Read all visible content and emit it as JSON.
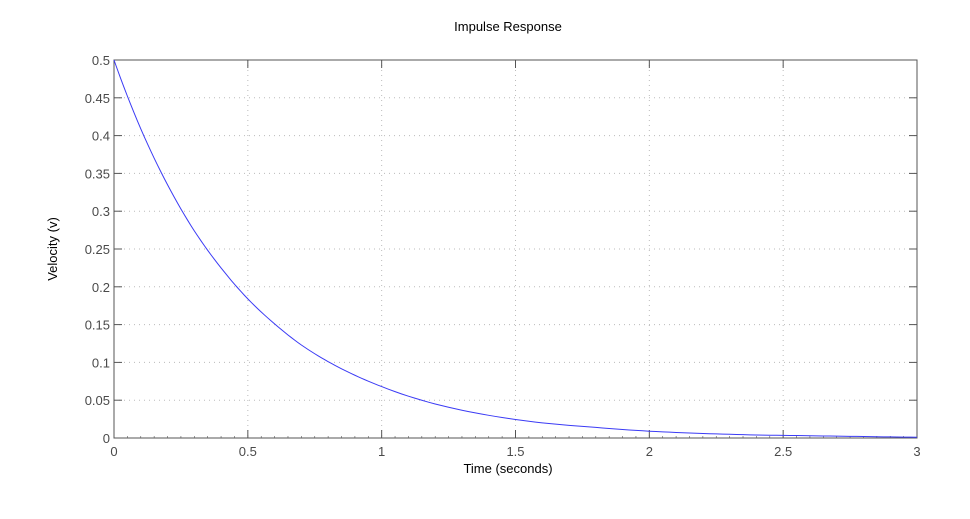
{
  "chart_data": {
    "type": "line",
    "title": "Impulse Response",
    "xlabel": "Time (seconds)",
    "ylabel": "Velocity (v)",
    "xlim": [
      0,
      3
    ],
    "ylim": [
      0,
      0.5
    ],
    "x_ticks": [
      0,
      0.5,
      1,
      1.5,
      2,
      2.5,
      3
    ],
    "x_tick_labels": [
      "0",
      "0.5",
      "1",
      "1.5",
      "2",
      "2.5",
      "3"
    ],
    "y_ticks": [
      0,
      0.05,
      0.1,
      0.15,
      0.2,
      0.25,
      0.3,
      0.35,
      0.4,
      0.45,
      0.5
    ],
    "y_tick_labels": [
      "0",
      "0.05",
      "0.1",
      "0.15",
      "0.2",
      "0.25",
      "0.3",
      "0.35",
      "0.4",
      "0.45",
      "0.5"
    ],
    "grid": true,
    "legend": null,
    "series": [
      {
        "name": "Impulse response",
        "color": "#3b3bf5",
        "x": [
          0,
          0.1,
          0.2,
          0.3,
          0.4,
          0.5,
          0.6,
          0.7,
          0.8,
          0.9,
          1.0,
          1.2,
          1.4,
          1.6,
          1.8,
          2.0,
          2.2,
          2.4,
          2.6,
          2.8,
          3.0
        ],
        "y": [
          0.5,
          0.409,
          0.335,
          0.274,
          0.225,
          0.184,
          0.151,
          0.123,
          0.101,
          0.083,
          0.068,
          0.045,
          0.03,
          0.02,
          0.014,
          0.009,
          0.006,
          0.004,
          0.003,
          0.002,
          0.001
        ]
      }
    ]
  },
  "colors": {
    "axis": "#555555",
    "grid": "#bbbbbb",
    "line": "#3b3bf5"
  }
}
